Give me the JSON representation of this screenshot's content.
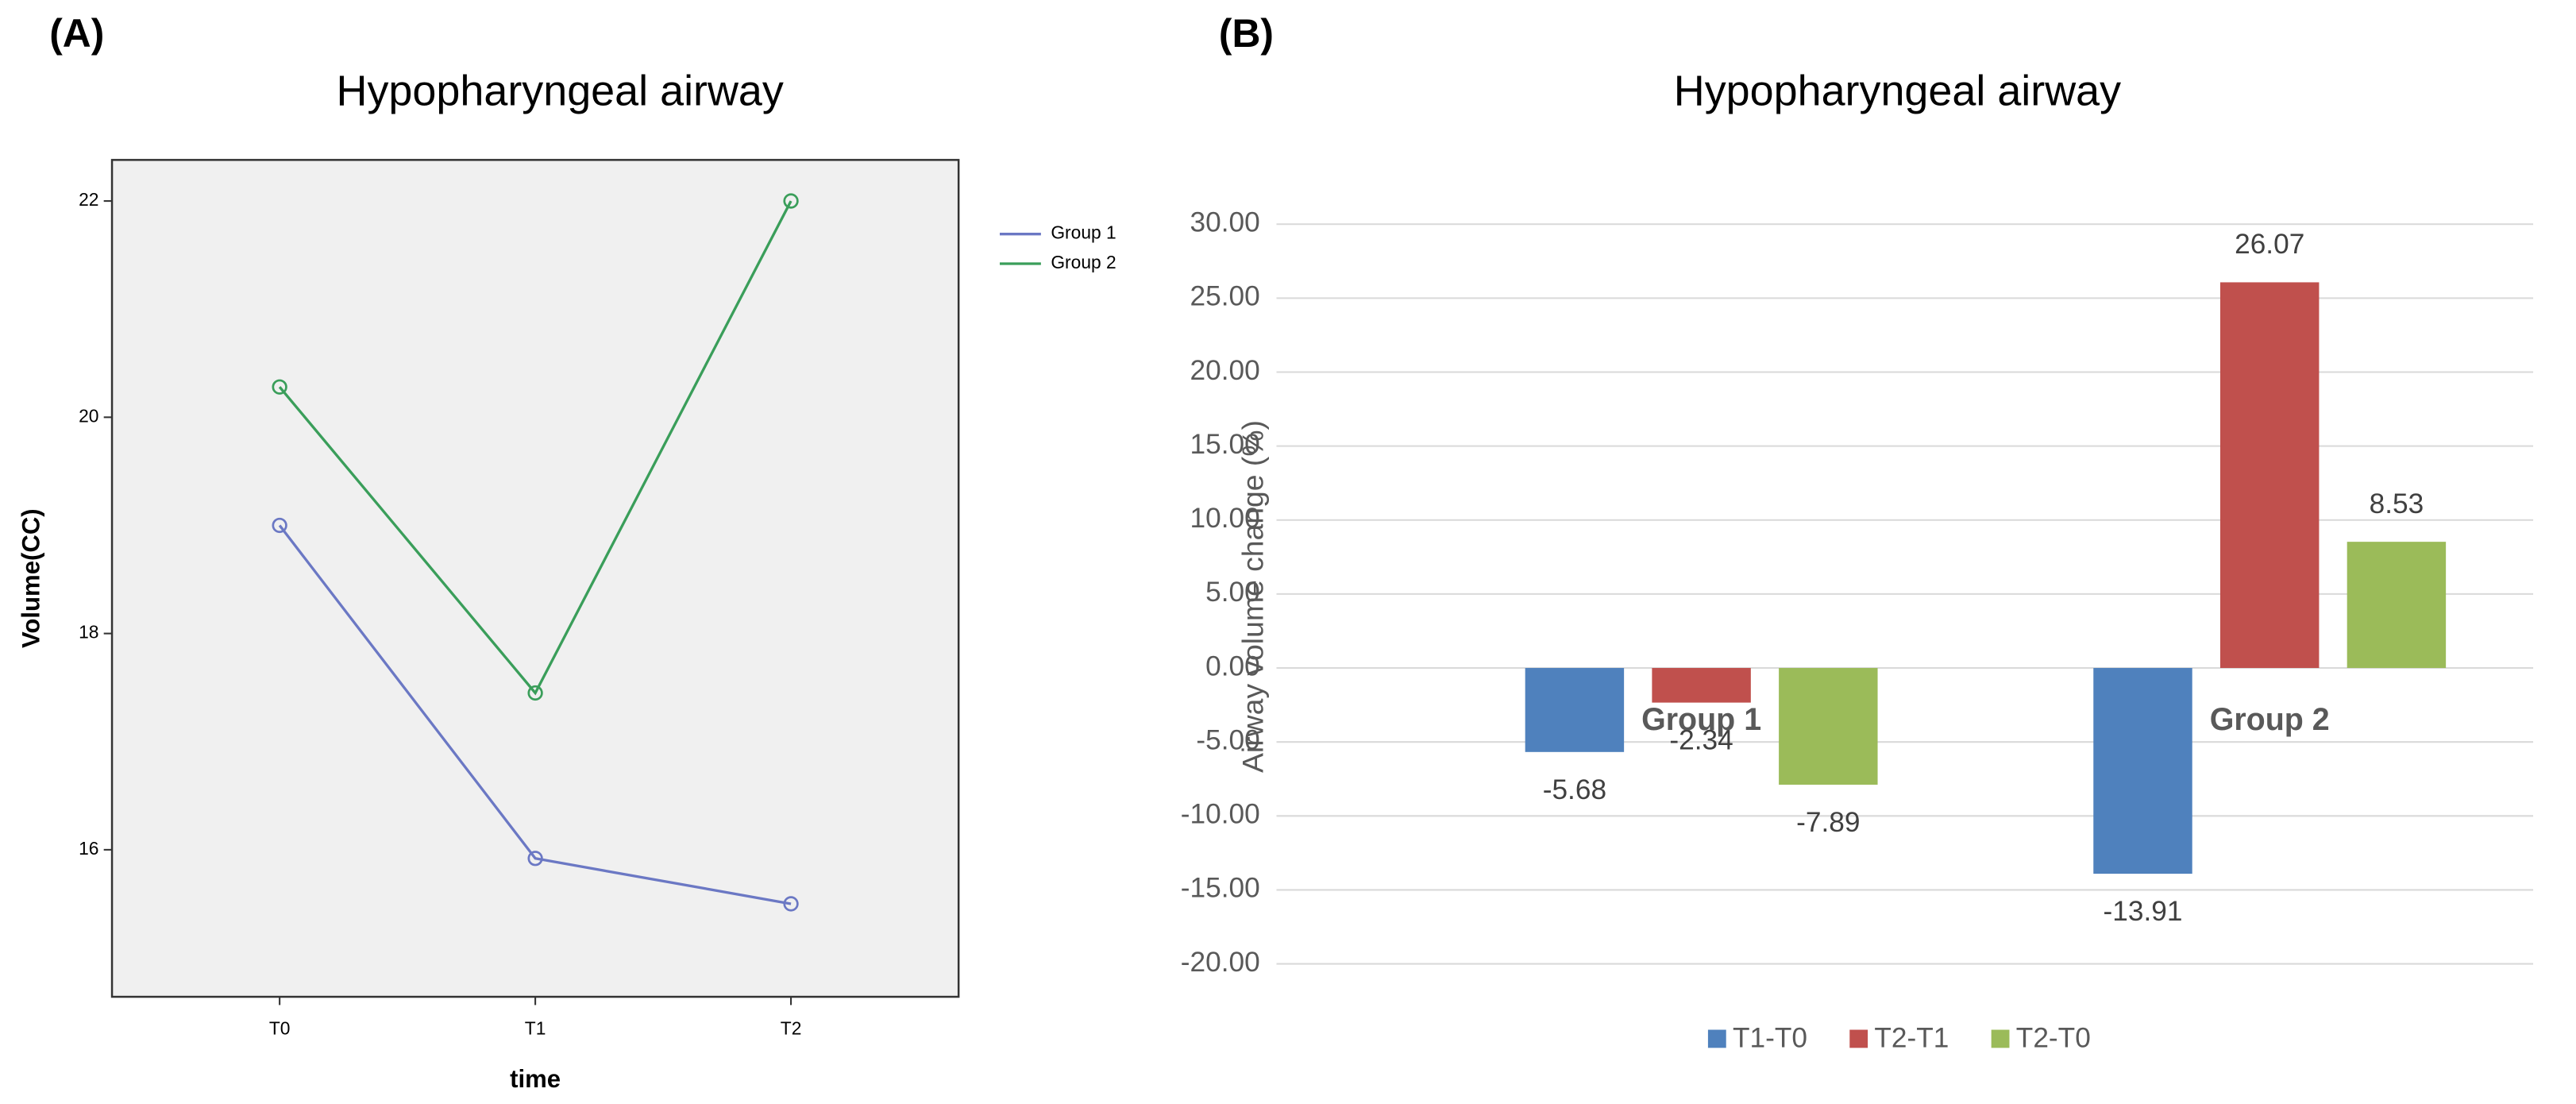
{
  "chart_data": [
    {
      "type": "line",
      "panel_label": "(A)",
      "title": "Hypopharyngeal airway",
      "x_label": "time",
      "y_label": "Volume(CC)",
      "categories": [
        "T0",
        "T1",
        "T2"
      ],
      "series": [
        {
          "name": "Group 1",
          "color": "#6b78c4",
          "values": [
            19.0,
            15.92,
            15.5
          ]
        },
        {
          "name": "Group 2",
          "color": "#3a9e5a",
          "values": [
            20.28,
            17.45,
            22.0
          ]
        }
      ],
      "ylim": [
        14.64,
        22.38
      ],
      "yticks": [
        16,
        18,
        20,
        22
      ],
      "legend": "right"
    },
    {
      "type": "bar",
      "panel_label": "(B)",
      "title": "Hypopharyngeal airway",
      "y_label": "Airway volume change (%)",
      "categories": [
        "Group 1",
        "Group 2"
      ],
      "series": [
        {
          "name": "T1-T0",
          "color": "#4f81bd",
          "values": [
            -5.68,
            -13.91
          ]
        },
        {
          "name": "T2-T1",
          "color": "#c0504d",
          "values": [
            -2.34,
            26.07
          ]
        },
        {
          "name": "T2-T0",
          "color": "#9bbb59",
          "values": [
            -7.89,
            8.53
          ]
        }
      ],
      "ylim": [
        -20,
        30
      ],
      "yticks": [
        {
          "value": -20,
          "label": "-20.00"
        },
        {
          "value": -15,
          "label": "-15.00"
        },
        {
          "value": -10,
          "label": "-10.00"
        },
        {
          "value": -5,
          "label": "-5.00"
        },
        {
          "value": 0,
          "label": "0.00"
        },
        {
          "value": 5,
          "label": "5.00"
        },
        {
          "value": 10,
          "label": "10.00"
        },
        {
          "value": 15,
          "label": "15.00"
        },
        {
          "value": 20,
          "label": "20.00"
        },
        {
          "value": 25,
          "label": "25.00"
        },
        {
          "value": 30,
          "label": "30.00"
        }
      ],
      "grid": true,
      "legend": "bottom"
    }
  ]
}
